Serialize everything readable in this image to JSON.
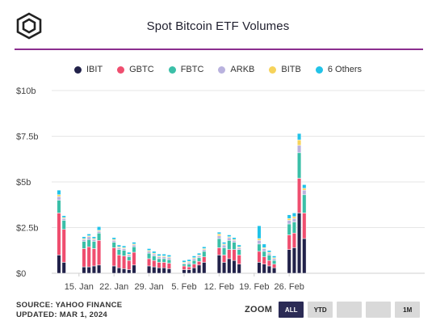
{
  "title": "Spot Bitcoin ETF Volumes",
  "footer": {
    "source": "SOURCE: YAHOO FINANCE",
    "updated": "UPDATED: MAR 1, 2024"
  },
  "zoom": {
    "label": "ZOOM",
    "buttons": [
      "ALL",
      "YTD",
      "",
      "",
      "1M"
    ],
    "active": "ALL"
  },
  "colors": {
    "IBIT": "#22224a",
    "GBTC": "#ef4e6f",
    "FBTC": "#3bbfa8",
    "ARKB": "#b9b2de",
    "BITB": "#f6d35b",
    "Others": "#22c3e8"
  },
  "chart_data": {
    "type": "bar",
    "stacked": true,
    "unit": "b",
    "y_ticks": [
      "$0",
      "$2.5b",
      "$5b",
      "$7.5b",
      "$10b"
    ],
    "ylim": [
      0,
      10
    ],
    "grid": true,
    "legend_position": "top",
    "x_tick_labels": [
      {
        "label": "15. Jan",
        "at": "2024-01-15"
      },
      {
        "label": "22. Jan",
        "at": "2024-01-22"
      },
      {
        "label": "29. Jan",
        "at": "2024-01-29"
      },
      {
        "label": "5. Feb",
        "at": "2024-02-05"
      },
      {
        "label": "12. Feb",
        "at": "2024-02-12"
      },
      {
        "label": "19. Feb",
        "at": "2024-02-19"
      },
      {
        "label": "26. Feb",
        "at": "2024-02-26"
      }
    ],
    "dates": [
      "2024-01-11",
      "2024-01-12",
      "2024-01-16",
      "2024-01-17",
      "2024-01-18",
      "2024-01-19",
      "2024-01-22",
      "2024-01-23",
      "2024-01-24",
      "2024-01-25",
      "2024-01-26",
      "2024-01-29",
      "2024-01-30",
      "2024-01-31",
      "2024-02-01",
      "2024-02-02",
      "2024-02-05",
      "2024-02-06",
      "2024-02-07",
      "2024-02-08",
      "2024-02-09",
      "2024-02-12",
      "2024-02-13",
      "2024-02-14",
      "2024-02-15",
      "2024-02-16",
      "2024-02-20",
      "2024-02-21",
      "2024-02-22",
      "2024-02-23",
      "2024-02-26",
      "2024-02-27",
      "2024-02-28",
      "2024-02-29",
      "2024-03-01"
    ],
    "series": [
      {
        "name": "IBIT",
        "values": [
          1.0,
          0.6,
          0.35,
          0.35,
          0.4,
          0.45,
          0.4,
          0.3,
          0.25,
          0.2,
          0.45,
          0.4,
          0.35,
          0.3,
          0.3,
          0.25,
          0.2,
          0.2,
          0.3,
          0.45,
          0.6,
          1.0,
          0.6,
          0.8,
          0.7,
          0.5,
          0.6,
          0.5,
          0.4,
          0.3,
          1.3,
          1.4,
          3.3,
          1.9,
          0.0
        ]
      },
      {
        "name": "GBTC",
        "values": [
          2.3,
          1.8,
          1.0,
          1.1,
          0.95,
          1.35,
          1.0,
          0.7,
          0.7,
          0.5,
          0.7,
          0.4,
          0.35,
          0.3,
          0.3,
          0.3,
          0.2,
          0.15,
          0.2,
          0.2,
          0.3,
          0.4,
          0.4,
          0.5,
          0.6,
          0.5,
          0.6,
          0.4,
          0.3,
          0.2,
          0.8,
          0.8,
          1.9,
          1.4,
          0.0
        ]
      },
      {
        "name": "FBTC",
        "values": [
          0.7,
          0.5,
          0.4,
          0.4,
          0.4,
          0.4,
          0.3,
          0.3,
          0.3,
          0.2,
          0.3,
          0.3,
          0.25,
          0.2,
          0.2,
          0.2,
          0.1,
          0.15,
          0.2,
          0.2,
          0.3,
          0.5,
          0.4,
          0.5,
          0.4,
          0.3,
          0.4,
          0.3,
          0.3,
          0.2,
          0.6,
          0.6,
          1.4,
          1.0,
          0.0
        ]
      },
      {
        "name": "ARKB",
        "values": [
          0.2,
          0.1,
          0.1,
          0.15,
          0.1,
          0.1,
          0.1,
          0.1,
          0.1,
          0.1,
          0.1,
          0.1,
          0.1,
          0.1,
          0.1,
          0.1,
          0.05,
          0.1,
          0.1,
          0.1,
          0.1,
          0.15,
          0.15,
          0.15,
          0.1,
          0.1,
          0.2,
          0.15,
          0.1,
          0.1,
          0.2,
          0.2,
          0.4,
          0.25,
          0.0
        ]
      },
      {
        "name": "BITB",
        "values": [
          0.1,
          0.05,
          0.05,
          0.05,
          0.05,
          0.05,
          0.05,
          0.05,
          0.05,
          0.05,
          0.05,
          0.05,
          0.05,
          0.05,
          0.05,
          0.05,
          0.05,
          0.05,
          0.05,
          0.05,
          0.05,
          0.1,
          0.05,
          0.05,
          0.05,
          0.05,
          0.1,
          0.05,
          0.05,
          0.05,
          0.1,
          0.1,
          0.3,
          0.1,
          0.0
        ]
      },
      {
        "name": "6 Others",
        "values": [
          0.25,
          0.1,
          0.1,
          0.1,
          0.1,
          0.2,
          0.1,
          0.1,
          0.1,
          0.1,
          0.1,
          0.1,
          0.1,
          0.1,
          0.1,
          0.1,
          0.1,
          0.1,
          0.1,
          0.1,
          0.1,
          0.1,
          0.1,
          0.1,
          0.1,
          0.1,
          0.7,
          0.2,
          0.1,
          0.1,
          0.2,
          0.2,
          0.35,
          0.2,
          0.0
        ]
      }
    ]
  }
}
